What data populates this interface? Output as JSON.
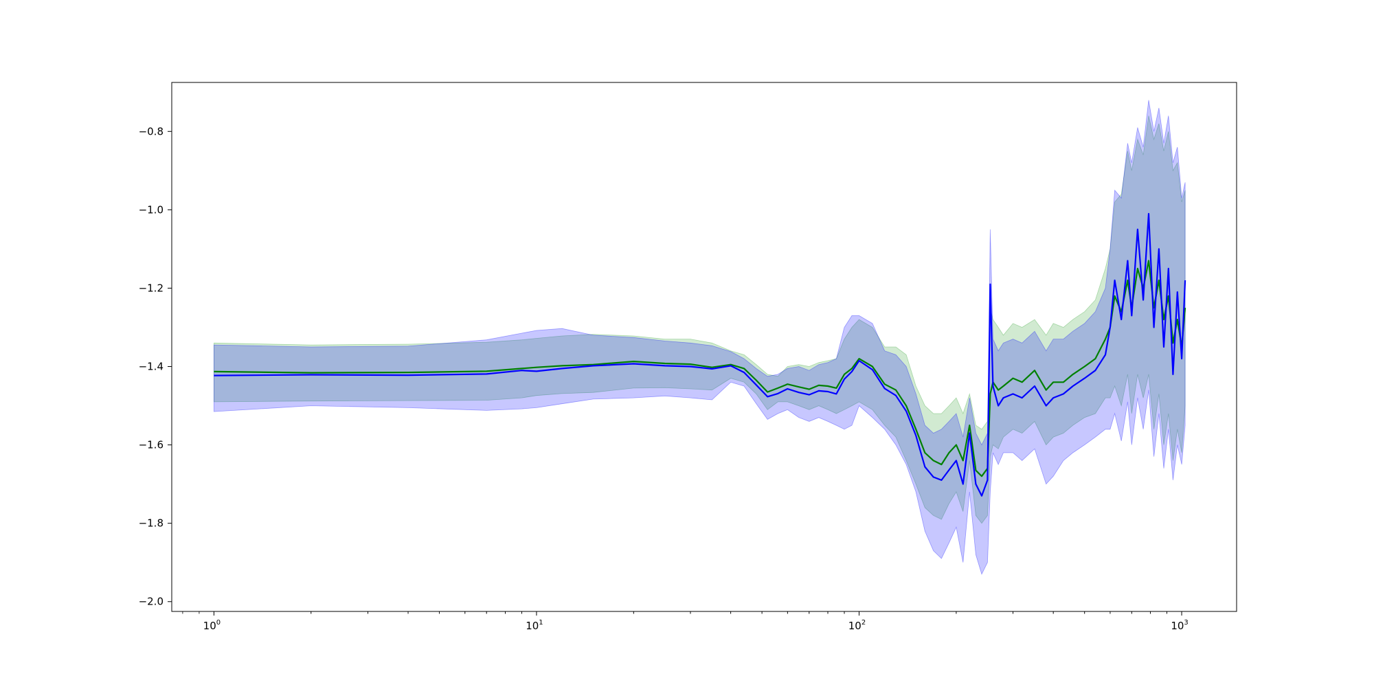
{
  "chart_data": {
    "type": "line",
    "title": "",
    "xlabel": "",
    "ylabel": "",
    "x_scale": "log",
    "xlim": [
      0.74,
      1480
    ],
    "ylim": [
      -2.025,
      -0.675
    ],
    "grid": false,
    "legend": null,
    "x_ticks": [
      {
        "value": 1,
        "base": "10",
        "exp": "0"
      },
      {
        "value": 10,
        "base": "10",
        "exp": "1"
      },
      {
        "value": 100,
        "base": "10",
        "exp": "2"
      },
      {
        "value": 1000,
        "base": "10",
        "exp": "3"
      }
    ],
    "y_ticks": [
      {
        "value": -0.8,
        "label": "−0.8"
      },
      {
        "value": -1.0,
        "label": "−1.0"
      },
      {
        "value": -1.2,
        "label": "−1.2"
      },
      {
        "value": -1.4,
        "label": "−1.4"
      },
      {
        "value": -1.6,
        "label": "−1.6"
      },
      {
        "value": -1.8,
        "label": "−1.8"
      },
      {
        "value": -2.0,
        "label": "−2.0"
      }
    ],
    "x": [
      1,
      2,
      4,
      7,
      9,
      10,
      12,
      15,
      20,
      25,
      30,
      35,
      40,
      44,
      48,
      52,
      56,
      60,
      65,
      70,
      75,
      80,
      85,
      90,
      95,
      100,
      110,
      120,
      130,
      140,
      150,
      160,
      170,
      180,
      190,
      200,
      210,
      220,
      230,
      240,
      250,
      255,
      260,
      270,
      280,
      300,
      320,
      350,
      380,
      400,
      430,
      460,
      500,
      540,
      580,
      600,
      620,
      650,
      680,
      700,
      730,
      760,
      790,
      820,
      850,
      880,
      910,
      940,
      970,
      1000,
      1025
    ],
    "series": [
      {
        "color": "#008000",
        "fill": "#2ca02c",
        "values": [
          -1.413,
          -1.416,
          -1.415,
          -1.412,
          -1.405,
          -1.402,
          -1.398,
          -1.395,
          -1.387,
          -1.392,
          -1.394,
          -1.402,
          -1.395,
          -1.405,
          -1.435,
          -1.465,
          -1.455,
          -1.445,
          -1.452,
          -1.458,
          -1.448,
          -1.45,
          -1.455,
          -1.42,
          -1.405,
          -1.38,
          -1.4,
          -1.445,
          -1.46,
          -1.5,
          -1.56,
          -1.62,
          -1.64,
          -1.65,
          -1.62,
          -1.6,
          -1.64,
          -1.55,
          -1.665,
          -1.68,
          -1.66,
          -1.47,
          -1.44,
          -1.46,
          -1.45,
          -1.43,
          -1.44,
          -1.41,
          -1.46,
          -1.44,
          -1.44,
          -1.42,
          -1.4,
          -1.38,
          -1.33,
          -1.3,
          -1.22,
          -1.26,
          -1.18,
          -1.25,
          -1.15,
          -1.2,
          -1.13,
          -1.25,
          -1.18,
          -1.28,
          -1.22,
          -1.34,
          -1.28,
          -1.35,
          -1.25
        ],
        "upper": [
          -1.34,
          -1.345,
          -1.343,
          -1.338,
          -1.332,
          -1.328,
          -1.322,
          -1.318,
          -1.322,
          -1.33,
          -1.33,
          -1.34,
          -1.36,
          -1.37,
          -1.395,
          -1.42,
          -1.425,
          -1.4,
          -1.395,
          -1.4,
          -1.39,
          -1.385,
          -1.38,
          -1.33,
          -1.3,
          -1.28,
          -1.3,
          -1.35,
          -1.35,
          -1.37,
          -1.45,
          -1.5,
          -1.52,
          -1.52,
          -1.5,
          -1.48,
          -1.52,
          -1.47,
          -1.55,
          -1.56,
          -1.54,
          -1.25,
          -1.28,
          -1.3,
          -1.32,
          -1.29,
          -1.3,
          -1.28,
          -1.32,
          -1.29,
          -1.3,
          -1.28,
          -1.26,
          -1.23,
          -1.15,
          -1.1,
          -0.98,
          -0.96,
          -0.85,
          -0.9,
          -0.82,
          -0.86,
          -0.76,
          -0.82,
          -0.78,
          -0.85,
          -0.8,
          -0.9,
          -0.88,
          -0.98,
          -0.95
        ],
        "lower": [
          -1.49,
          -1.488,
          -1.487,
          -1.486,
          -1.48,
          -1.474,
          -1.469,
          -1.466,
          -1.455,
          -1.454,
          -1.457,
          -1.46,
          -1.43,
          -1.44,
          -1.47,
          -1.51,
          -1.49,
          -1.49,
          -1.5,
          -1.51,
          -1.5,
          -1.51,
          -1.52,
          -1.51,
          -1.5,
          -1.49,
          -1.51,
          -1.55,
          -1.58,
          -1.64,
          -1.7,
          -1.76,
          -1.78,
          -1.79,
          -1.75,
          -1.72,
          -1.77,
          -1.64,
          -1.78,
          -1.8,
          -1.78,
          -1.63,
          -1.6,
          -1.61,
          -1.58,
          -1.56,
          -1.57,
          -1.54,
          -1.6,
          -1.58,
          -1.57,
          -1.55,
          -1.53,
          -1.52,
          -1.48,
          -1.48,
          -1.45,
          -1.5,
          -1.42,
          -1.52,
          -1.42,
          -1.48,
          -1.42,
          -1.56,
          -1.47,
          -1.6,
          -1.52,
          -1.64,
          -1.56,
          -1.62,
          -1.5
        ]
      },
      {
        "color": "#0000ff",
        "fill": "#0000ff",
        "values": [
          -1.423,
          -1.421,
          -1.422,
          -1.419,
          -1.41,
          -1.412,
          -1.405,
          -1.398,
          -1.393,
          -1.398,
          -1.4,
          -1.406,
          -1.398,
          -1.415,
          -1.447,
          -1.477,
          -1.469,
          -1.457,
          -1.466,
          -1.472,
          -1.462,
          -1.464,
          -1.47,
          -1.432,
          -1.413,
          -1.385,
          -1.408,
          -1.456,
          -1.474,
          -1.514,
          -1.576,
          -1.656,
          -1.682,
          -1.69,
          -1.664,
          -1.64,
          -1.7,
          -1.57,
          -1.7,
          -1.73,
          -1.69,
          -1.19,
          -1.45,
          -1.5,
          -1.48,
          -1.47,
          -1.48,
          -1.45,
          -1.5,
          -1.48,
          -1.47,
          -1.45,
          -1.43,
          -1.41,
          -1.37,
          -1.3,
          -1.18,
          -1.28,
          -1.13,
          -1.27,
          -1.05,
          -1.23,
          -1.01,
          -1.3,
          -1.1,
          -1.35,
          -1.15,
          -1.42,
          -1.21,
          -1.38,
          -1.18
        ],
        "upper": [
          -1.345,
          -1.35,
          -1.348,
          -1.332,
          -1.315,
          -1.308,
          -1.303,
          -1.32,
          -1.326,
          -1.335,
          -1.34,
          -1.347,
          -1.362,
          -1.38,
          -1.405,
          -1.425,
          -1.42,
          -1.405,
          -1.4,
          -1.41,
          -1.395,
          -1.39,
          -1.38,
          -1.3,
          -1.27,
          -1.27,
          -1.29,
          -1.36,
          -1.37,
          -1.4,
          -1.47,
          -1.55,
          -1.57,
          -1.56,
          -1.54,
          -1.52,
          -1.58,
          -1.48,
          -1.57,
          -1.6,
          -1.57,
          -1.05,
          -1.33,
          -1.36,
          -1.34,
          -1.33,
          -1.34,
          -1.31,
          -1.36,
          -1.33,
          -1.33,
          -1.31,
          -1.29,
          -1.26,
          -1.2,
          -1.1,
          -0.95,
          -0.97,
          -0.83,
          -0.88,
          -0.79,
          -0.84,
          -0.72,
          -0.8,
          -0.74,
          -0.83,
          -0.76,
          -0.88,
          -0.84,
          -0.97,
          -0.93
        ],
        "lower": [
          -1.515,
          -1.5,
          -1.505,
          -1.512,
          -1.508,
          -1.505,
          -1.495,
          -1.483,
          -1.48,
          -1.475,
          -1.48,
          -1.485,
          -1.44,
          -1.45,
          -1.495,
          -1.535,
          -1.52,
          -1.51,
          -1.53,
          -1.54,
          -1.53,
          -1.54,
          -1.55,
          -1.56,
          -1.55,
          -1.5,
          -1.53,
          -1.56,
          -1.6,
          -1.65,
          -1.72,
          -1.82,
          -1.87,
          -1.89,
          -1.85,
          -1.81,
          -1.9,
          -1.72,
          -1.88,
          -1.93,
          -1.9,
          -1.72,
          -1.62,
          -1.65,
          -1.62,
          -1.62,
          -1.64,
          -1.61,
          -1.7,
          -1.68,
          -1.64,
          -1.62,
          -1.6,
          -1.58,
          -1.56,
          -1.56,
          -1.52,
          -1.59,
          -1.49,
          -1.6,
          -1.48,
          -1.56,
          -1.46,
          -1.63,
          -1.52,
          -1.66,
          -1.56,
          -1.69,
          -1.6,
          -1.65,
          -1.55
        ]
      }
    ]
  }
}
